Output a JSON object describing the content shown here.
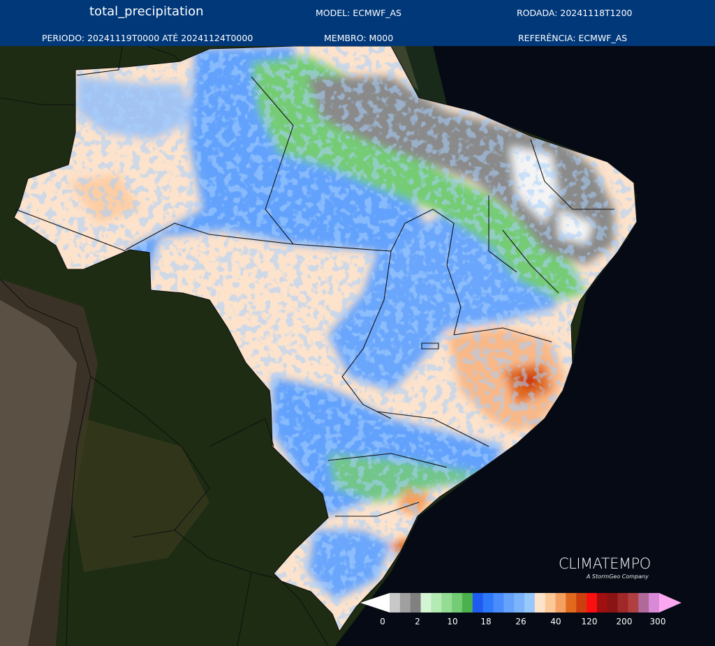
{
  "header": {
    "variable": "total_precipitation",
    "model": "MODEL: ECMWF_AS",
    "run": "RODADA: 20241118T1200",
    "period": "PERIODO: 20241119T0000 ATÉ 20241124T0000",
    "member": "MEMBRO: M000",
    "reference": "REFERÊNCIA: ECMWF_AS"
  },
  "branding": {
    "name": "CLIMATEMPO",
    "tagline": "A StormGeo Company"
  },
  "legend": {
    "tick_labels": [
      "0",
      "2",
      "10",
      "18",
      "26",
      "40",
      "120",
      "200",
      "300"
    ],
    "colors": [
      "#ffffff",
      "#c8c8c8",
      "#a0a0a0",
      "#808080",
      "#d4f5d4",
      "#b4eab4",
      "#94dc94",
      "#74cc74",
      "#4cb04c",
      "#1e5cf0",
      "#2e78fa",
      "#4a8cfc",
      "#64a2fc",
      "#7cb4fc",
      "#98c8fc",
      "#fde3cc",
      "#fcc898",
      "#f4a060",
      "#e06a1e",
      "#cc4010",
      "#fa1010",
      "#a01010",
      "#8a1414",
      "#a02828",
      "#b04040",
      "#b06a9a",
      "#d88ad8",
      "#fba8f0"
    ]
  },
  "map_colors": {
    "dry": "#fde3cc",
    "moderate": "#64a2fc",
    "wet_green": "#74cc74",
    "very_dry_gray": "#8a8a8a",
    "heavy_orange": "#f4a060",
    "extreme_red": "#cc2a10",
    "ocean": "#050a14"
  }
}
